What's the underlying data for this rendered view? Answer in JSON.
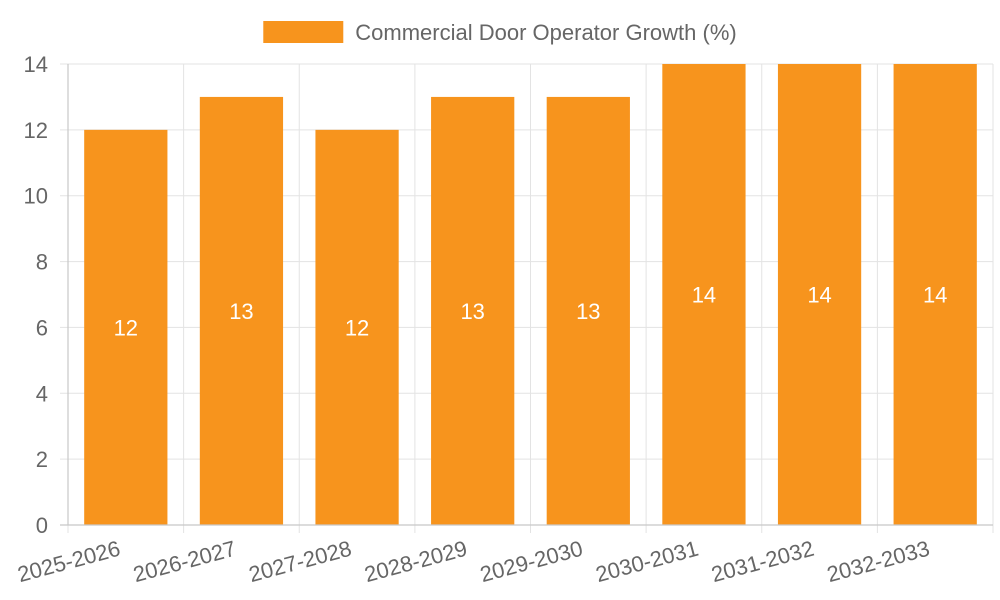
{
  "chart_data": {
    "type": "bar",
    "title": "",
    "xlabel": "",
    "ylabel": "",
    "categories": [
      "2025-2026",
      "2026-2027",
      "2027-2028",
      "2028-2029",
      "2029-2030",
      "2030-2031",
      "2031-2032",
      "2032-2033"
    ],
    "series": [
      {
        "name": "Commercial Door Operator Growth (%)",
        "values": [
          12,
          13,
          12,
          13,
          13,
          14,
          14,
          14
        ],
        "color": "#f7941d"
      }
    ],
    "ylim": [
      0,
      14
    ],
    "yticks": [
      0,
      2,
      4,
      6,
      8,
      10,
      12,
      14
    ],
    "grid": true,
    "legend_position": "top-center",
    "data_labels": true
  },
  "colors": {
    "bar": "#f7941d",
    "grid": "#e3e3e3",
    "text": "#666666",
    "label": "#ffffff"
  }
}
